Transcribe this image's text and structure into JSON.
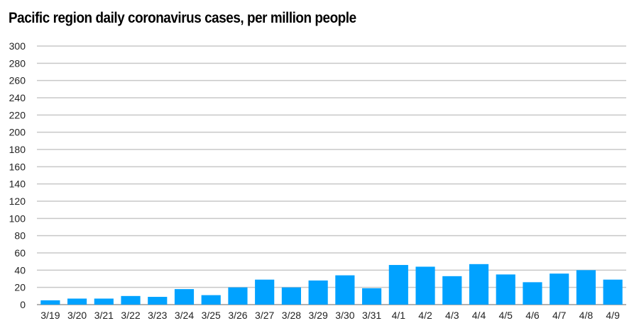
{
  "chart_data": {
    "type": "bar",
    "title": "Pacific region daily coronavirus cases, per million people",
    "categories": [
      "3/19",
      "3/20",
      "3/21",
      "3/22",
      "3/23",
      "3/24",
      "3/25",
      "3/26",
      "3/27",
      "3/28",
      "3/29",
      "3/30",
      "3/31",
      "4/1",
      "4/2",
      "4/3",
      "4/4",
      "4/5",
      "4/6",
      "4/7",
      "4/8",
      "4/9"
    ],
    "values": [
      5,
      7,
      7,
      10,
      9,
      18,
      11,
      20,
      29,
      20,
      28,
      34,
      19,
      46,
      44,
      33,
      47,
      35,
      26,
      36,
      40,
      29
    ],
    "ylim": [
      0,
      300
    ],
    "yticks": [
      0,
      20,
      40,
      60,
      80,
      100,
      120,
      140,
      160,
      180,
      200,
      220,
      240,
      260,
      280,
      300
    ],
    "xlabel": "",
    "ylabel": "",
    "grid": true,
    "bar_color": "#00a2ff",
    "grid_color": "#c8c8c8"
  }
}
